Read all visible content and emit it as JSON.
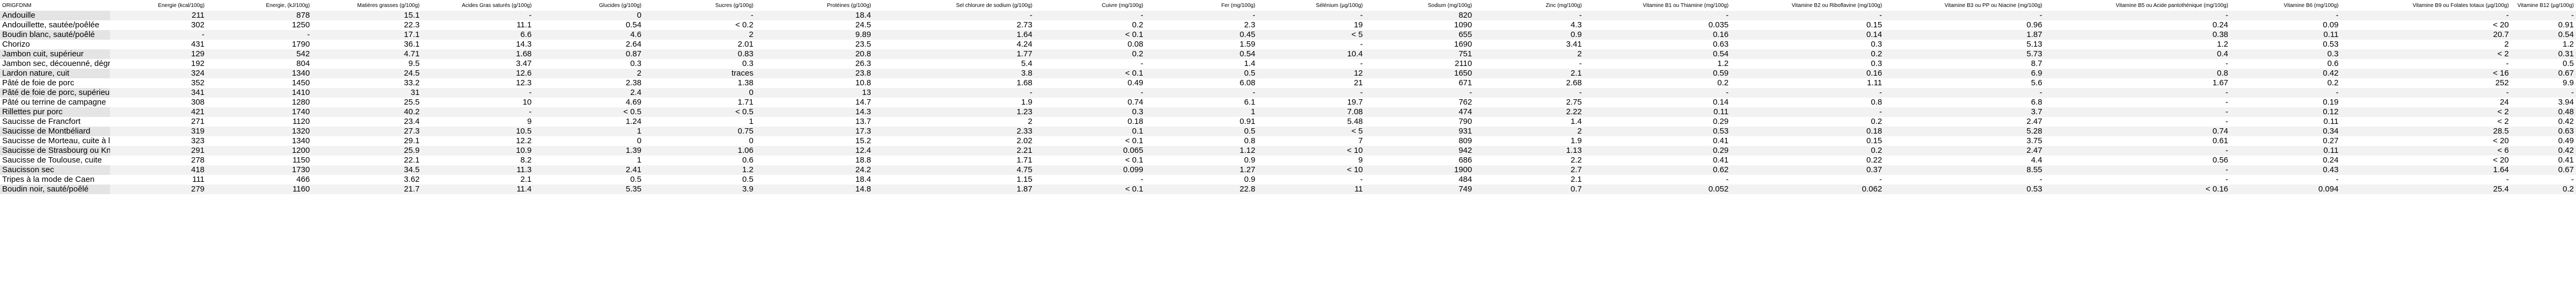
{
  "table": {
    "headers": [
      "ORIGFDNM",
      "Energie (kcal/100g)",
      "Energie, (kJ/100g)",
      "Matières grasses (g/100g)",
      "Acides Gras saturés (g/100g)",
      "Glucides (g/100g)",
      "Sucres (g/100g)",
      "Protéines (g/100g)",
      "Sel chlorure de sodium (g/100g)",
      "Cuivre (mg/100g)",
      "Fer (mg/100g)",
      "Sélénium (µg/100g)",
      "Sodium (mg/100g)",
      "Zinc (mg/100g)",
      "Vitamine B1 ou Thiamine (mg/100g)",
      "Vitamine B2 ou Riboflavine (mg/100g)",
      "Vitamine B3 ou PP ou Niacine (mg/100g)",
      "Vitamine B5 ou Acide pantothénique (mg/100g)",
      "Vitamine B6 (mg/100g)",
      "Vitamine B9 ou Folates totaux (µg/100g)",
      "Vitamine B12 (µg/100g)"
    ],
    "rows": [
      [
        "Andouille",
        "211",
        "878",
        "15.1",
        "-",
        "0",
        "-",
        "18.4",
        "-",
        "-",
        "-",
        "-",
        "820",
        "-",
        "-",
        "-",
        "-",
        "-",
        "-",
        "-",
        "-"
      ],
      [
        "Andouillette, sautée/poêlée",
        "302",
        "1250",
        "22.3",
        "11.1",
        "0.54",
        "< 0.2",
        "24.5",
        "2.73",
        "0.2",
        "2.3",
        "19",
        "1090",
        "4.3",
        "0.035",
        "0.15",
        "0.96",
        "0.24",
        "0.09",
        "< 20",
        "0.91"
      ],
      [
        "Boudin blanc, sauté/poêlé",
        "-",
        "-",
        "17.1",
        "6.6",
        "4.6",
        "2",
        "9.89",
        "1.64",
        "< 0.1",
        "0.45",
        "< 5",
        "655",
        "0.9",
        "0.16",
        "0.14",
        "1.87",
        "0.38",
        "0.11",
        "20.7",
        "0.54"
      ],
      [
        "Chorizo",
        "431",
        "1790",
        "36.1",
        "14.3",
        "2.64",
        "2.01",
        "23.5",
        "4.24",
        "0.08",
        "1.59",
        "-",
        "1690",
        "3.41",
        "0.63",
        "0.3",
        "5.13",
        "1.2",
        "0.53",
        "2",
        "1.2"
      ],
      [
        "Jambon cuit, supérieur",
        "129",
        "542",
        "4.71",
        "1.68",
        "0.87",
        "0.83",
        "20.8",
        "1.77",
        "0.2",
        "0.54",
        "10.4",
        "751",
        "2",
        "0.54",
        "0.2",
        "5.73",
        "0.4",
        "0.3",
        "< 2",
        "0.31"
      ],
      [
        "Jambon sec, découenné, dégraissé",
        "192",
        "804",
        "9.5",
        "3.47",
        "0.3",
        "0.3",
        "26.3",
        "5.4",
        "-",
        "1.4",
        "-",
        "2110",
        "-",
        "1.2",
        "0.3",
        "8.7",
        "-",
        "0.6",
        "-",
        "0.5"
      ],
      [
        "Lardon nature, cuit",
        "324",
        "1340",
        "24.5",
        "12.6",
        "2",
        "traces",
        "23.8",
        "3.8",
        "< 0.1",
        "0.5",
        "12",
        "1650",
        "2.1",
        "0.59",
        "0.16",
        "6.9",
        "0.8",
        "0.42",
        "< 16",
        "0.67"
      ],
      [
        "Pâté de foie de porc",
        "352",
        "1450",
        "33.2",
        "12.3",
        "2.38",
        "1.38",
        "10.8",
        "1.68",
        "0.49",
        "6.08",
        "21",
        "671",
        "2.68",
        "0.2",
        "1.11",
        "5.6",
        "1.67",
        "0.2",
        "252",
        "9.9"
      ],
      [
        "Pâté de foie de porc, supérieur",
        "341",
        "1410",
        "31",
        "-",
        "2.4",
        "0",
        "13",
        "-",
        "-",
        "-",
        "-",
        "-",
        "-",
        "-",
        "-",
        "-",
        "-",
        "-",
        "-",
        "-"
      ],
      [
        "Pâté ou terrine de campagne",
        "308",
        "1280",
        "25.5",
        "10",
        "4.69",
        "1.71",
        "14.7",
        "1.9",
        "0.74",
        "6.1",
        "19.7",
        "762",
        "2.75",
        "0.14",
        "0.8",
        "6.8",
        "-",
        "0.19",
        "24",
        "3.94"
      ],
      [
        "Rillettes pur porc",
        "421",
        "1740",
        "40.2",
        "-",
        "< 0.5",
        "< 0.5",
        "14.3",
        "1.23",
        "0.3",
        "1",
        "7.08",
        "474",
        "2.22",
        "0.11",
        "-",
        "3.7",
        "-",
        "0.12",
        "< 2",
        "0.48"
      ],
      [
        "Saucisse de Francfort",
        "271",
        "1120",
        "23.4",
        "9",
        "1.24",
        "1",
        "13.7",
        "2",
        "0.18",
        "0.91",
        "5.48",
        "790",
        "1.4",
        "0.29",
        "0.2",
        "2.47",
        "-",
        "0.11",
        "< 2",
        "0.42"
      ],
      [
        "Saucisse de Montbéliard",
        "319",
        "1320",
        "27.3",
        "10.5",
        "1",
        "0.75",
        "17.3",
        "2.33",
        "0.1",
        "0.5",
        "< 5",
        "931",
        "2",
        "0.53",
        "0.18",
        "5.28",
        "0.74",
        "0.34",
        "28.5",
        "0.63"
      ],
      [
        "Saucisse de Morteau, cuite à l'eau",
        "323",
        "1340",
        "29.1",
        "12.2",
        "0",
        "0",
        "15.2",
        "2.02",
        "< 0.1",
        "0.8",
        "7",
        "809",
        "1.9",
        "0.41",
        "0.15",
        "3.75",
        "0.61",
        "0.27",
        "< 20",
        "0.49"
      ],
      [
        "Saucisse de Strasbourg ou Knack",
        "291",
        "1200",
        "25.9",
        "10.9",
        "1.39",
        "1.06",
        "12.4",
        "2.21",
        "0.065",
        "1.12",
        "< 10",
        "942",
        "1.13",
        "0.29",
        "0.2",
        "2.47",
        "-",
        "0.11",
        "< 6",
        "0.42"
      ],
      [
        "Saucisse de Toulouse, cuite",
        "278",
        "1150",
        "22.1",
        "8.2",
        "1",
        "0.6",
        "18.8",
        "1.71",
        "< 0.1",
        "0.9",
        "9",
        "686",
        "2.2",
        "0.41",
        "0.22",
        "4.4",
        "0.56",
        "0.24",
        "< 20",
        "0.41"
      ],
      [
        "Saucisson sec",
        "418",
        "1730",
        "34.5",
        "11.3",
        "2.41",
        "1.2",
        "24.2",
        "4.75",
        "0.099",
        "1.27",
        "< 10",
        "1900",
        "2.7",
        "0.62",
        "0.37",
        "8.55",
        "-",
        "0.43",
        "1.64",
        "0.67"
      ],
      [
        "Tripes à la mode de Caen",
        "111",
        "466",
        "3.62",
        "2.1",
        "0.5",
        "0.5",
        "18.4",
        "1.15",
        "-",
        "0.9",
        "-",
        "484",
        "2.1",
        "-",
        "-",
        "-",
        "-",
        "-",
        "-",
        "-"
      ],
      [
        "Boudin noir, sauté/poêlé",
        "279",
        "1160",
        "21.7",
        "11.4",
        "5.35",
        "3.9",
        "14.8",
        "1.87",
        "< 0.1",
        "22.8",
        "11",
        "749",
        "0.7",
        "0.052",
        "0.062",
        "0.53",
        "< 0.16",
        "0.094",
        "25.4",
        "0.2"
      ]
    ]
  }
}
